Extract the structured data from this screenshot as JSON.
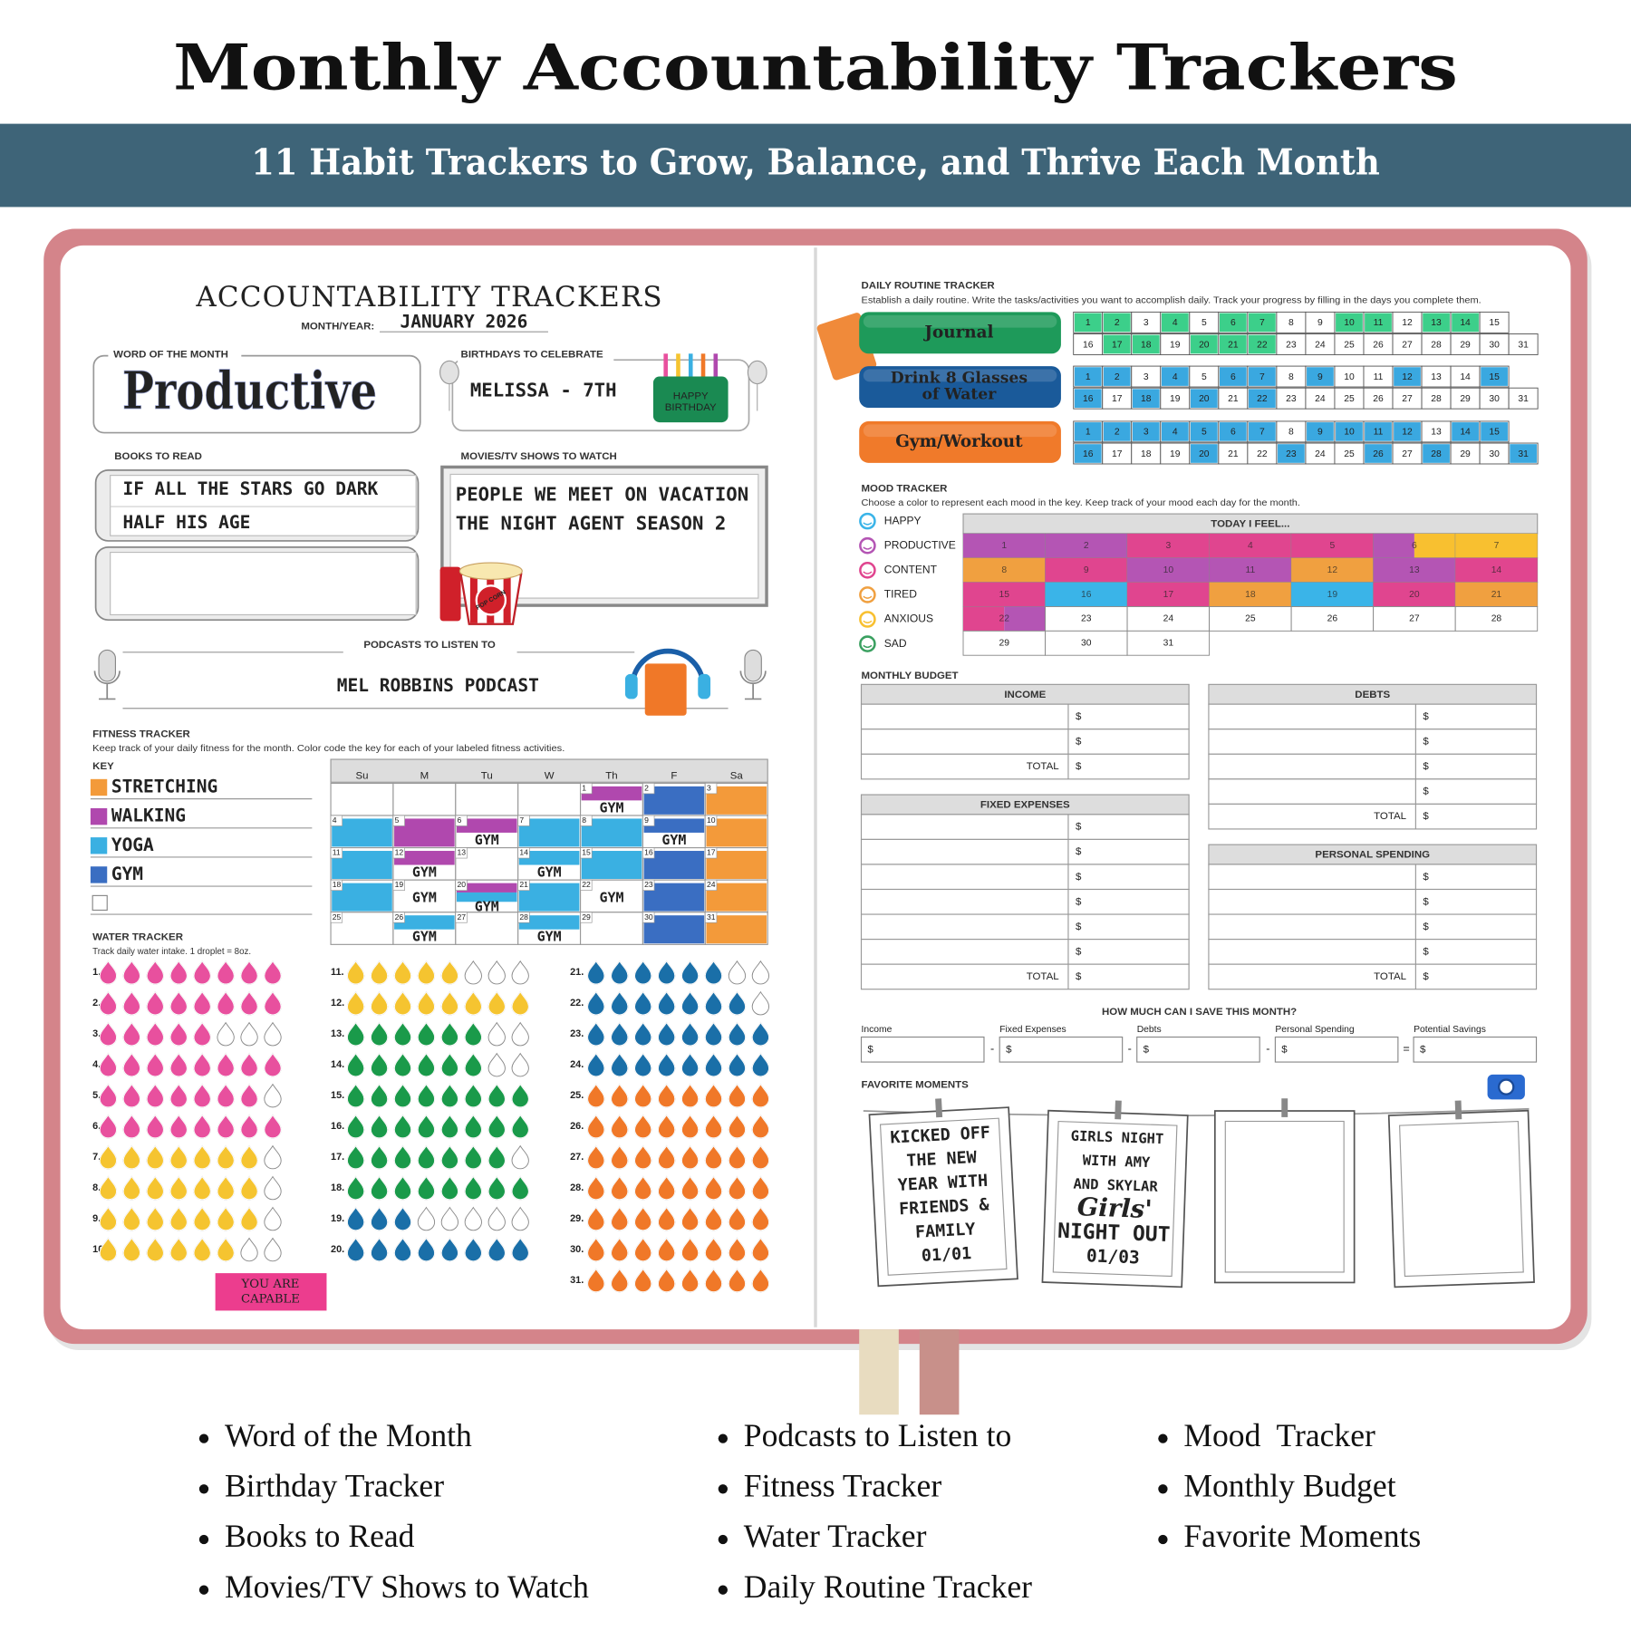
{
  "header": {
    "title": "Monthly Accountability Trackers",
    "subtitle": "11 Habit Trackers to Grow, Balance, and Thrive Each Month"
  },
  "calendar_days": [
    1,
    2,
    3,
    4,
    5,
    6,
    7,
    8,
    9,
    10,
    11,
    12,
    13,
    14,
    15,
    16,
    17,
    18,
    19,
    20,
    21,
    22,
    23,
    24,
    25,
    26,
    27,
    28,
    29,
    30,
    31
  ],
  "left_page": {
    "title": "ACCOUNTABILITY TRACKERS",
    "month_label": "MONTH/YEAR:",
    "month_value": "JANUARY 2026",
    "word_of_month": {
      "label": "WORD OF THE MONTH",
      "value": "Productive"
    },
    "birthdays": {
      "label": "BIRTHDAYS TO CELEBRATE",
      "entries": [
        "MELISSA - 7TH"
      ],
      "cake_text": [
        "HAPPY",
        "BIRTHDAY"
      ]
    },
    "books": {
      "label": "BOOKS TO READ",
      "items": [
        "IF ALL THE STARS GO DARK",
        "HALF HIS AGE"
      ]
    },
    "movies": {
      "label": "MOVIES/TV SHOWS TO WATCH",
      "items": [
        "PEOPLE WE MEET ON VACATION",
        "THE NIGHT AGENT SEASON 2"
      ],
      "popcorn_text": "POP CORN"
    },
    "podcasts": {
      "label": "PODCASTS TO LISTEN TO",
      "items": [
        "MEL ROBBINS PODCAST"
      ]
    },
    "fitness": {
      "label": "FITNESS TRACKER",
      "description": "Keep track of your daily fitness for the month. Color code the key for each of your labeled fitness activities.",
      "key_label": "KEY",
      "key": [
        {
          "name": "STRETCHING",
          "color": "#f39a3a"
        },
        {
          "name": "WALKING",
          "color": "#b048ae"
        },
        {
          "name": "YOGA",
          "color": "#3ab0e2"
        },
        {
          "name": "GYM",
          "color": "#3a6ec2"
        }
      ],
      "weekdays": [
        "Su",
        "M",
        "Tu",
        "W",
        "Th",
        "F",
        "Sa"
      ],
      "days": [
        {
          "activities": [
            "WALKING"
          ],
          "note": "GYM"
        },
        {
          "activities": [
            "GYM"
          ]
        },
        {
          "activities": [
            "STRETCHING"
          ]
        },
        {
          "activities": [
            "YOGA"
          ]
        },
        {
          "activities": [
            "WALKING"
          ]
        },
        {
          "activities": [
            "WALKING"
          ],
          "note": "GYM"
        },
        {
          "activities": [
            "YOGA"
          ]
        },
        {
          "activities": [
            "YOGA"
          ]
        },
        {
          "activities": [
            "GYM"
          ],
          "note": "GYM"
        },
        {
          "activities": [
            "STRETCHING"
          ]
        },
        {
          "activities": [
            "YOGA"
          ]
        },
        {
          "activities": [
            "WALKING"
          ],
          "note": "GYM"
        },
        {
          "activities": []
        },
        {
          "activities": [
            "YOGA"
          ],
          "note": "GYM"
        },
        {
          "activities": [
            "YOGA"
          ]
        },
        {
          "activities": [
            "GYM"
          ]
        },
        {
          "activities": [
            "STRETCHING"
          ]
        },
        {
          "activities": [
            "YOGA"
          ]
        },
        {
          "activities": [],
          "note": "GYM"
        },
        {
          "activities": [
            "WALKING",
            "YOGA"
          ],
          "note": "GYM"
        },
        {
          "activities": [
            "YOGA"
          ]
        },
        {
          "activities": [],
          "note": "GYM"
        },
        {
          "activities": [
            "GYM"
          ]
        },
        {
          "activities": [
            "STRETCHING"
          ]
        },
        {
          "activities": []
        },
        {
          "activities": [
            "YOGA"
          ],
          "note": "GYM"
        },
        {
          "activities": []
        },
        {
          "activities": [
            "YOGA"
          ],
          "note": "GYM"
        },
        {
          "activities": []
        },
        {
          "activities": [
            "GYM"
          ]
        },
        {
          "activities": [
            "STRETCHING"
          ]
        }
      ]
    },
    "water": {
      "label": "WATER TRACKER",
      "description": "Track daily water intake. 1 droplet = 8oz.",
      "days": [
        {
          "label": "1.",
          "drops": 8,
          "color": "#e8509e"
        },
        {
          "label": "2.",
          "drops": 8,
          "color": "#e8509e"
        },
        {
          "label": "3.",
          "drops": 5,
          "color": "#e8509e"
        },
        {
          "label": "4.",
          "drops": 8,
          "color": "#e8509e"
        },
        {
          "label": "5.",
          "drops": 7,
          "color": "#e8509e"
        },
        {
          "label": "6.",
          "drops": 8,
          "color": "#e8509e"
        },
        {
          "label": "7.",
          "drops": 7,
          "color": "#f5c430"
        },
        {
          "label": "8.",
          "drops": 7,
          "color": "#f5c430"
        },
        {
          "label": "9.",
          "drops": 7,
          "color": "#f5c430"
        },
        {
          "label": "10.",
          "drops": 6,
          "color": "#f5c430"
        },
        {
          "label": "11.",
          "drops": 5,
          "color": "#f5c430"
        },
        {
          "label": "12.",
          "drops": 8,
          "color": "#f5c430"
        },
        {
          "label": "13.",
          "drops": 6,
          "color": "#1a9a4a"
        },
        {
          "label": "14.",
          "drops": 6,
          "color": "#1a9a4a"
        },
        {
          "label": "15.",
          "drops": 8,
          "color": "#1a9a4a"
        },
        {
          "label": "16.",
          "drops": 8,
          "color": "#1a9a4a"
        },
        {
          "label": "17.",
          "drops": 7,
          "color": "#1a9a4a"
        },
        {
          "label": "18.",
          "drops": 8,
          "color": "#1a9a4a"
        },
        {
          "label": "19.",
          "drops": 3,
          "color": "#1a6fa8"
        },
        {
          "label": "20.",
          "drops": 8,
          "color": "#1a6fa8"
        },
        {
          "label": "21.",
          "drops": 6,
          "color": "#1a6fa8"
        },
        {
          "label": "22.",
          "drops": 7,
          "color": "#1a6fa8"
        },
        {
          "label": "23.",
          "drops": 8,
          "color": "#1a6fa8"
        },
        {
          "label": "24.",
          "drops": 8,
          "color": "#1a6fa8"
        },
        {
          "label": "25.",
          "drops": 8,
          "color": "#f07828"
        },
        {
          "label": "26.",
          "drops": 8,
          "color": "#f07828"
        },
        {
          "label": "27.",
          "drops": 8,
          "color": "#f07828"
        },
        {
          "label": "28.",
          "drops": 8,
          "color": "#f07828"
        },
        {
          "label": "29.",
          "drops": 8,
          "color": "#f07828"
        },
        {
          "label": "30.",
          "drops": 8,
          "color": "#f07828"
        },
        {
          "label": "31.",
          "drops": 8,
          "color": "#f07828"
        }
      ]
    },
    "badge": [
      "YOU ARE",
      "CAPABLE"
    ]
  },
  "right_page": {
    "routine": {
      "label": "DAILY ROUTINE TRACKER",
      "description": "Establish a daily routine. Write the tasks/activities you want to accomplish daily. Track your progress by filling in the days you complete them.",
      "habits": [
        {
          "name": [
            "Journal"
          ],
          "color": "#1e9a5a",
          "fill": "#3ccf8a",
          "done": [
            1,
            2,
            4,
            6,
            7,
            10,
            11,
            13,
            14,
            17,
            18,
            20,
            21,
            22
          ]
        },
        {
          "name": [
            "Drink 8 Glasses",
            "of Water"
          ],
          "color": "#1a5a9a",
          "fill": "#3aa8e0",
          "done": [
            1,
            2,
            4,
            6,
            7,
            9,
            12,
            15,
            16,
            18,
            20,
            22
          ]
        },
        {
          "name": [
            "Gym/Workout"
          ],
          "color": "#f07a2a",
          "fill": "#3aa8e0",
          "done": [
            1,
            2,
            3,
            4,
            5,
            6,
            7,
            9,
            10,
            11,
            12,
            14,
            15,
            16,
            20,
            23,
            26,
            28,
            31
          ]
        }
      ]
    },
    "mood": {
      "label": "MOOD TRACKER",
      "description": "Choose a color to represent each mood in the key. Keep track of your mood each day for the month.",
      "header": "TODAY I FEEL...",
      "key": [
        {
          "name": "HAPPY",
          "color": "#3ab4e8"
        },
        {
          "name": "PRODUCTIVE",
          "color": "#b455b4"
        },
        {
          "name": "CONTENT",
          "color": "#e0458f"
        },
        {
          "name": "TIRED",
          "color": "#f0a040"
        },
        {
          "name": "ANXIOUS",
          "color": "#f8c030"
        },
        {
          "name": "SAD",
          "color": "#3aa060"
        }
      ],
      "days": [
        [
          "PRODUCTIVE"
        ],
        [
          "PRODUCTIVE"
        ],
        [
          "CONTENT"
        ],
        [
          "CONTENT"
        ],
        [
          "CONTENT"
        ],
        [
          "PRODUCTIVE",
          "ANXIOUS"
        ],
        [
          "ANXIOUS"
        ],
        [
          "TIRED"
        ],
        [
          "CONTENT"
        ],
        [
          "PRODUCTIVE"
        ],
        [
          "PRODUCTIVE"
        ],
        [
          "TIRED"
        ],
        [
          "PRODUCTIVE"
        ],
        [
          "CONTENT"
        ],
        [
          "CONTENT"
        ],
        [
          "HAPPY"
        ],
        [
          "CONTENT"
        ],
        [
          "TIRED"
        ],
        [
          "HAPPY"
        ],
        [
          "CONTENT"
        ],
        [
          "TIRED"
        ],
        [
          "CONTENT",
          "PRODUCTIVE"
        ],
        [],
        [],
        [],
        [],
        [],
        [],
        [],
        [],
        []
      ]
    },
    "budget": {
      "label": "MONTHLY BUDGET",
      "currency": "$",
      "total_label": "TOTAL",
      "sections": [
        "INCOME",
        "DEBTS",
        "FIXED EXPENSES",
        "PERSONAL SPENDING"
      ]
    },
    "savings": {
      "title": "HOW MUCH CAN I SAVE THIS MONTH?",
      "fields": [
        "Income",
        "Fixed Expenses",
        "Debts",
        "Personal Spending",
        "Potential Savings"
      ],
      "operators": [
        "-",
        "-",
        "-",
        "="
      ]
    },
    "moments": {
      "label": "FAVORITE MOMENTS",
      "photos": [
        [
          "KICKED OFF",
          "THE NEW",
          "YEAR WITH",
          "FRIENDS &",
          "FAMILY",
          "01/01"
        ],
        [
          "GIRLS NIGHT",
          "WITH AMY",
          "AND SKYLAR",
          "Girls'",
          "NIGHT OUT",
          "01/03"
        ]
      ]
    }
  },
  "features": [
    "Word of the Month",
    "Birthday Tracker",
    "Books to Read",
    "Movies/TV Shows to Watch",
    "Podcasts to Listen to",
    "Fitness Tracker",
    "Water Tracker",
    "Daily Routine Tracker",
    "Mood  Tracker",
    "Monthly Budget",
    "Favorite Moments"
  ]
}
